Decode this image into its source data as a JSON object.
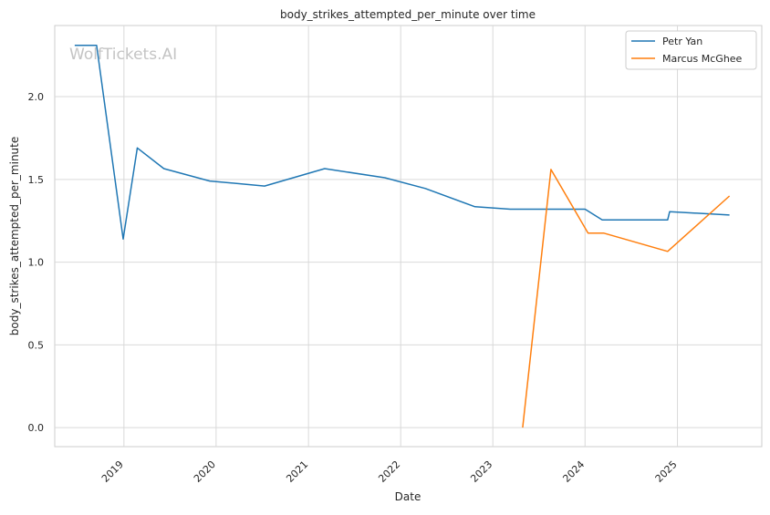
{
  "chart_data": {
    "type": "line",
    "title": "body_strikes_attempted_per_minute over time",
    "xlabel": "Date",
    "ylabel": "body_strikes_attempted_per_minute",
    "watermark": "WolfTickets.AI",
    "x_ticks": [
      "2019",
      "2020",
      "2021",
      "2022",
      "2023",
      "2024",
      "2025"
    ],
    "y_ticks": [
      "0.0",
      "0.5",
      "1.0",
      "1.5",
      "2.0"
    ],
    "xlim": [
      "2018-04-02",
      "2025-12-01"
    ],
    "ylim": [
      -0.115,
      2.43
    ],
    "grid": true,
    "legend_position": "top-right",
    "series": [
      {
        "name": "Petr Yan",
        "color": "#1f77b4",
        "points": [
          [
            "2018-06-20",
            2.31
          ],
          [
            "2018-09-15",
            2.31
          ],
          [
            "2018-12-29",
            1.14
          ],
          [
            "2019-02-23",
            1.69
          ],
          [
            "2019-06-08",
            1.565
          ],
          [
            "2019-12-07",
            1.49
          ],
          [
            "2020-07-11",
            1.46
          ],
          [
            "2021-03-06",
            1.565
          ],
          [
            "2021-10-30",
            1.51
          ],
          [
            "2022-04-09",
            1.445
          ],
          [
            "2022-10-22",
            1.335
          ],
          [
            "2023-03-11",
            1.32
          ],
          [
            "2023-08-19",
            1.32
          ],
          [
            "2024-01-01",
            1.32
          ],
          [
            "2024-03-09",
            1.255
          ],
          [
            "2024-11-23",
            1.255
          ],
          [
            "2024-12-01",
            1.305
          ],
          [
            "2025-07-26",
            1.285
          ]
        ]
      },
      {
        "name": "Marcus McGhee",
        "color": "#ff7f0e",
        "points": [
          [
            "2023-04-29",
            0.0
          ],
          [
            "2023-08-19",
            1.56
          ],
          [
            "2024-01-13",
            1.175
          ],
          [
            "2024-03-16",
            1.175
          ],
          [
            "2024-11-23",
            1.065
          ],
          [
            "2025-07-26",
            1.4
          ]
        ]
      }
    ]
  }
}
